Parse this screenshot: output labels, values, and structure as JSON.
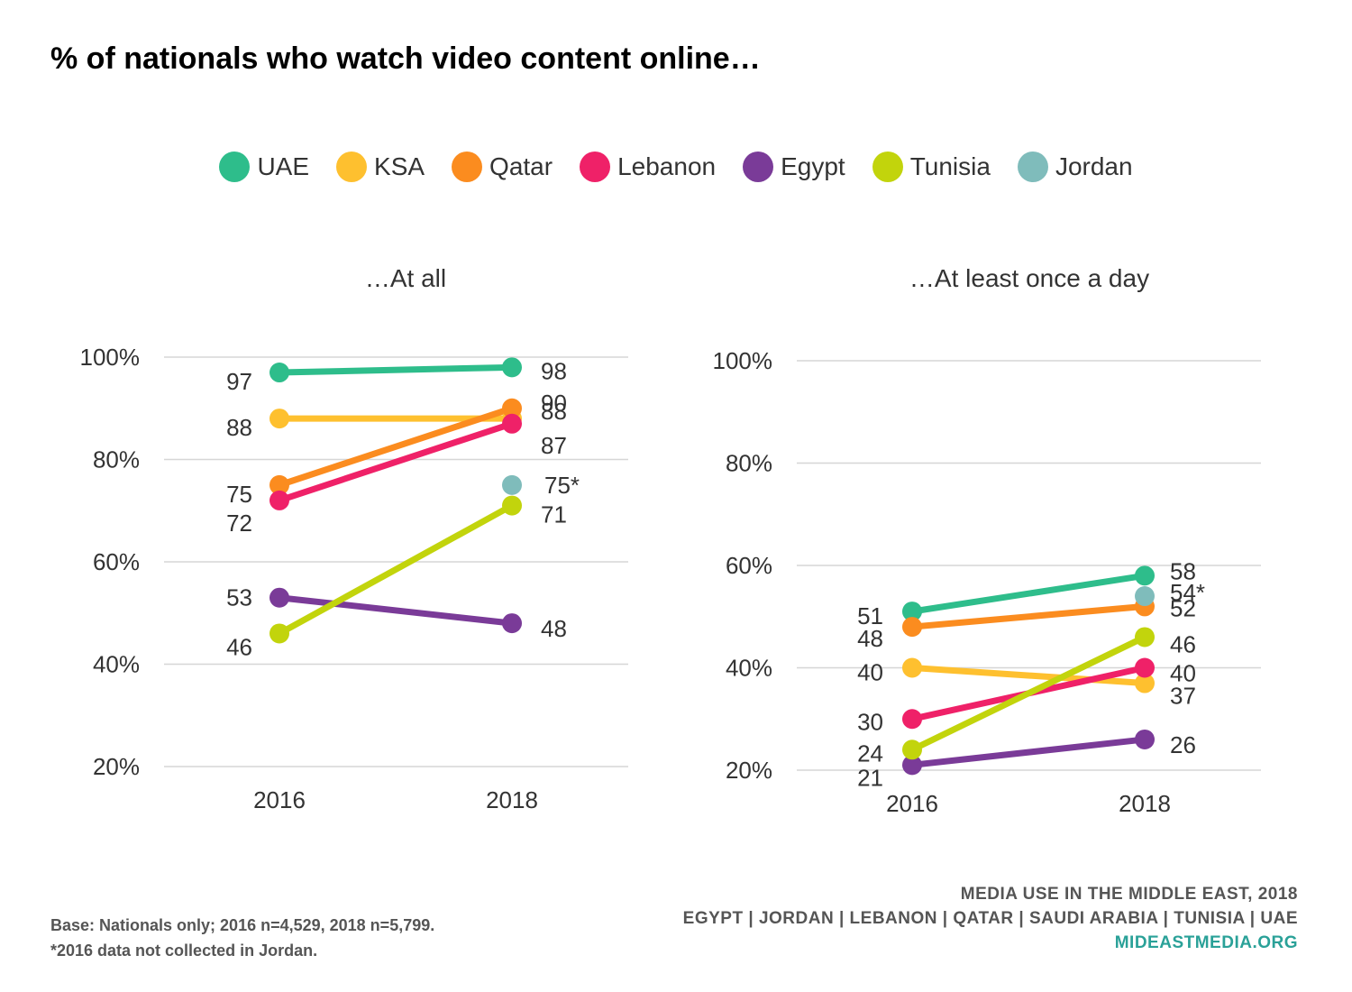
{
  "title": "% of nationals who watch video content online…",
  "legend": [
    {
      "name": "UAE",
      "color": "#2ebd8b"
    },
    {
      "name": "KSA",
      "color": "#fec02f"
    },
    {
      "name": "Qatar",
      "color": "#fb8c1f"
    },
    {
      "name": "Lebanon",
      "color": "#ef2168"
    },
    {
      "name": "Egypt",
      "color": "#7a3b98"
    },
    {
      "name": "Tunisia",
      "color": "#c2d40c"
    },
    {
      "name": "Jordan",
      "color": "#7fbcbb"
    }
  ],
  "footnote": {
    "line1": "Base: Nationals only; 2016 n=4,529, 2018 n=5,799.",
    "line2": "*2016 data not collected in Jordan."
  },
  "source": {
    "line1": "MEDIA USE IN THE MIDDLE EAST, 2018",
    "line2": "EGYPT | JORDAN | LEBANON | QATAR | SAUDI ARABIA | TUNISIA | UAE",
    "url": "MIDEASTMEDIA.ORG"
  },
  "chart_data": [
    {
      "type": "line",
      "title": "…At all",
      "categories": [
        "2016",
        "2018"
      ],
      "yticks": [
        "20%",
        "40%",
        "60%",
        "80%",
        "100%"
      ],
      "ylim": [
        20,
        100
      ],
      "grid": true,
      "series": [
        {
          "name": "UAE",
          "color": "#2ebd8b",
          "values": [
            97,
            98
          ],
          "labels": [
            "97",
            "98"
          ]
        },
        {
          "name": "KSA",
          "color": "#fec02f",
          "values": [
            88,
            88
          ],
          "labels": [
            "88",
            "88"
          ]
        },
        {
          "name": "Qatar",
          "color": "#fb8c1f",
          "values": [
            75,
            90
          ],
          "labels": [
            "75",
            "90"
          ]
        },
        {
          "name": "Lebanon",
          "color": "#ef2168",
          "values": [
            72,
            87
          ],
          "labels": [
            "72",
            "87"
          ]
        },
        {
          "name": "Egypt",
          "color": "#7a3b98",
          "values": [
            53,
            48
          ],
          "labels": [
            "53",
            "48"
          ]
        },
        {
          "name": "Tunisia",
          "color": "#c2d40c",
          "values": [
            46,
            71
          ],
          "labels": [
            "46",
            "71"
          ]
        },
        {
          "name": "Jordan",
          "color": "#7fbcbb",
          "values": [
            null,
            75
          ],
          "labels": [
            null,
            "75*"
          ]
        }
      ]
    },
    {
      "type": "line",
      "title": "…At least once a day",
      "categories": [
        "2016",
        "2018"
      ],
      "yticks": [
        "20%",
        "40%",
        "60%",
        "80%",
        "100%"
      ],
      "ylim": [
        20,
        100
      ],
      "grid": true,
      "series": [
        {
          "name": "UAE",
          "color": "#2ebd8b",
          "values": [
            51,
            58
          ],
          "labels": [
            "51",
            "58"
          ]
        },
        {
          "name": "KSA",
          "color": "#fec02f",
          "values": [
            40,
            37
          ],
          "labels": [
            "40",
            "37"
          ]
        },
        {
          "name": "Qatar",
          "color": "#fb8c1f",
          "values": [
            48,
            52
          ],
          "labels": [
            "48",
            "52"
          ]
        },
        {
          "name": "Lebanon",
          "color": "#ef2168",
          "values": [
            30,
            40
          ],
          "labels": [
            "30",
            "40"
          ]
        },
        {
          "name": "Egypt",
          "color": "#7a3b98",
          "values": [
            21,
            26
          ],
          "labels": [
            "21",
            "26"
          ]
        },
        {
          "name": "Tunisia",
          "color": "#c2d40c",
          "values": [
            24,
            46
          ],
          "labels": [
            "24",
            "46"
          ]
        },
        {
          "name": "Jordan",
          "color": "#7fbcbb",
          "values": [
            null,
            54
          ],
          "labels": [
            null,
            "54*"
          ]
        }
      ]
    }
  ]
}
